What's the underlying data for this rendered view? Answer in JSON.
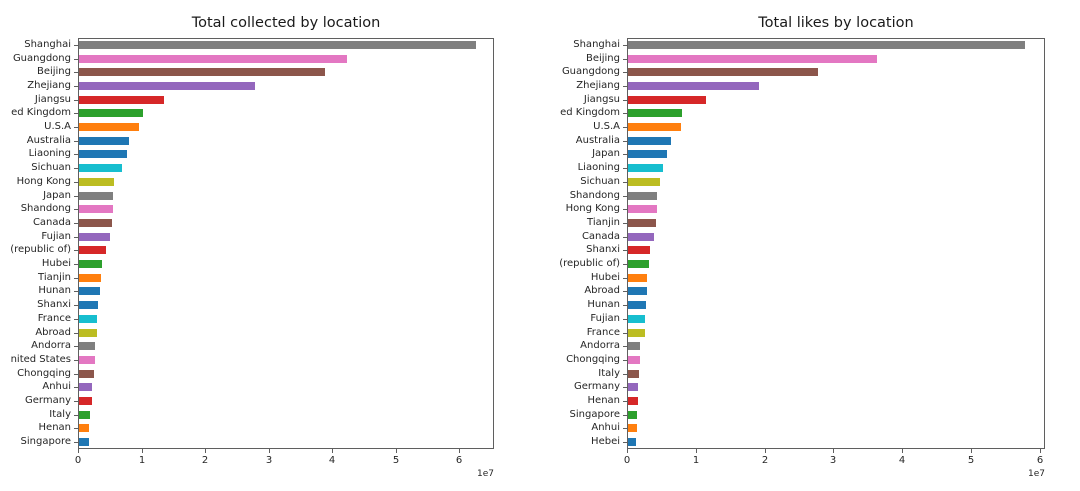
{
  "figure": {
    "background_color": "#ffffff",
    "text_color": "#262626",
    "spine_color": "#5f5f5f"
  },
  "bar_colors_by_rank": [
    "#7f7f7f",
    "#e377c2",
    "#8c564b",
    "#9467bd",
    "#d62728",
    "#2ca02c",
    "#ff7f0e",
    "#1f77b4",
    "#1f77b4",
    "#17becf",
    "#bcbd22",
    "#7f7f7f",
    "#e377c2",
    "#8c564b",
    "#9467bd",
    "#d62728",
    "#2ca02c",
    "#ff7f0e",
    "#1f77b4",
    "#1f77b4",
    "#17becf",
    "#bcbd22",
    "#7f7f7f",
    "#e377c2",
    "#8c564b",
    "#9467bd",
    "#d62728",
    "#2ca02c",
    "#ff7f0e",
    "#1f77b4"
  ],
  "chart_data": [
    {
      "type": "bar",
      "orientation": "horizontal",
      "title": "Total collected by location",
      "categories": [
        "Shanghai",
        "Guangdong",
        "Beijing",
        "Zhejiang",
        "Jiangsu",
        "ed Kingdom",
        "U.S.A",
        "Australia",
        "Liaoning",
        "Sichuan",
        "Hong Kong",
        "Japan",
        "Shandong",
        "Canada",
        "Fujian",
        "(republic of)",
        "Hubei",
        "Tianjin",
        "Hunan",
        "Shanxi",
        "France",
        "Abroad",
        "Andorra",
        "nited States",
        "Chongqing",
        "Anhui",
        "Germany",
        "Italy",
        "Henan",
        "Singapore"
      ],
      "values": [
        62500000,
        42200000,
        38800000,
        27700000,
        13400000,
        10000000,
        9400000,
        7800000,
        7500000,
        6800000,
        5500000,
        5400000,
        5300000,
        5200000,
        4900000,
        4200000,
        3700000,
        3400000,
        3300000,
        3000000,
        2900000,
        2800000,
        2500000,
        2500000,
        2400000,
        2100000,
        2000000,
        1800000,
        1600000,
        1500000
      ],
      "xlim": [
        0,
        65500000
      ],
      "xticks": [
        0,
        10000000,
        20000000,
        30000000,
        40000000,
        50000000,
        60000000
      ],
      "xtick_labels": [
        "0",
        "1",
        "2",
        "3",
        "4",
        "5",
        "6"
      ],
      "offset_text": "1e7",
      "grid": false,
      "legend": null
    },
    {
      "type": "bar",
      "orientation": "horizontal",
      "title": "Total likes by location",
      "categories": [
        "Shanghai",
        "Beijing",
        "Guangdong",
        "Zhejiang",
        "Jiangsu",
        "ed Kingdom",
        "U.S.A",
        "Australia",
        "Japan",
        "Liaoning",
        "Sichuan",
        "Shandong",
        "Hong Kong",
        "Tianjin",
        "Canada",
        "Shanxi",
        "(republic of)",
        "Hubei",
        "Abroad",
        "Hunan",
        "Fujian",
        "France",
        "Andorra",
        "Chongqing",
        "Italy",
        "Germany",
        "Henan",
        "Singapore",
        "Anhui",
        "Hebei"
      ],
      "values": [
        57700000,
        36200000,
        27600000,
        19100000,
        11400000,
        7900000,
        7700000,
        6200000,
        5600000,
        5100000,
        4700000,
        4250000,
        4200000,
        4000000,
        3800000,
        3200000,
        3000000,
        2800000,
        2700000,
        2600000,
        2500000,
        2400000,
        1800000,
        1700000,
        1600000,
        1500000,
        1400000,
        1300000,
        1300000,
        1200000
      ],
      "xlim": [
        0,
        60800000
      ],
      "xticks": [
        0,
        10000000,
        20000000,
        30000000,
        40000000,
        50000000,
        60000000
      ],
      "xtick_labels": [
        "0",
        "1",
        "2",
        "3",
        "4",
        "5",
        "6"
      ],
      "offset_text": "1e7",
      "grid": false,
      "legend": null
    }
  ]
}
